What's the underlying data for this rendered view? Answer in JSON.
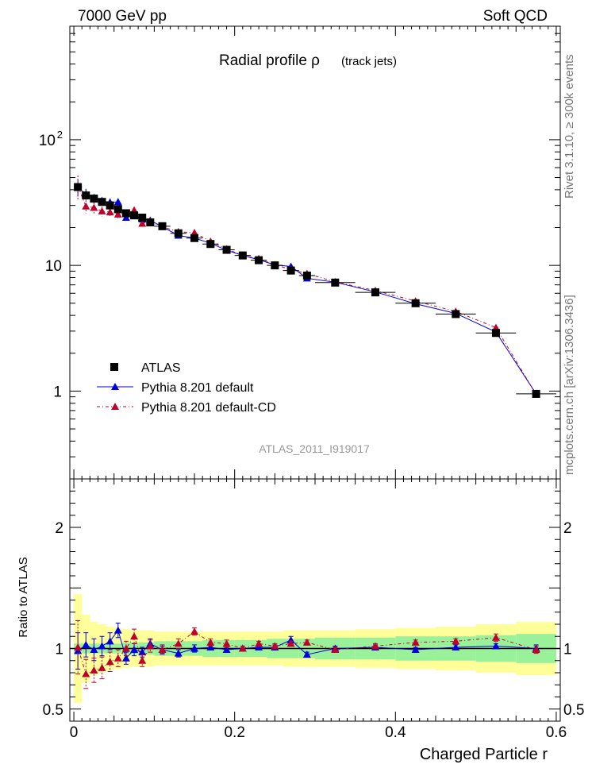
{
  "header": {
    "left": "7000 GeV pp",
    "right": "Soft QCD"
  },
  "side_text": {
    "rivet": "Rivet 3.1.10, ≥ 300k events",
    "mcplots": "mcplots.cern.ch [arXiv:1306.3436]"
  },
  "chart_data": {
    "type": "scatter",
    "title": "Radial profile ρ",
    "title_suffix": "(track jets)",
    "analysis_label": "ATLAS_2011_I919017",
    "xlabel": "Charged Particle r",
    "ratio_ylabel": "Ratio to ATLAS",
    "xlim": [
      -0.005,
      0.605
    ],
    "ylim": [
      0.2,
      800
    ],
    "yscale": "log",
    "ratio_ylim": [
      0.4,
      2.4
    ],
    "x_ticks": [
      {
        "v": 0,
        "label": "0"
      },
      {
        "v": 0.2,
        "label": "0.2"
      },
      {
        "v": 0.4,
        "label": "0.4"
      },
      {
        "v": 0.6,
        "label": "0.6"
      }
    ],
    "y_ticks": [
      {
        "v": 1,
        "label": "1"
      },
      {
        "v": 10,
        "label": "10"
      },
      {
        "v": 100,
        "label": "10",
        "sup": "2"
      }
    ],
    "ratio_ticks": [
      {
        "v": 0.5,
        "label": "0.5"
      },
      {
        "v": 1,
        "label": "1"
      },
      {
        "v": 2,
        "label": "2"
      }
    ],
    "legend_position": "center-left",
    "x": [
      0.005,
      0.015,
      0.025,
      0.035,
      0.045,
      0.055,
      0.065,
      0.075,
      0.085,
      0.095,
      0.11,
      0.13,
      0.15,
      0.17,
      0.19,
      0.21,
      0.23,
      0.25,
      0.27,
      0.29,
      0.325,
      0.375,
      0.425,
      0.475,
      0.525,
      0.575
    ],
    "xerr": [
      0.005,
      0.005,
      0.005,
      0.005,
      0.005,
      0.005,
      0.005,
      0.005,
      0.005,
      0.005,
      0.01,
      0.01,
      0.01,
      0.01,
      0.01,
      0.01,
      0.01,
      0.01,
      0.01,
      0.01,
      0.025,
      0.025,
      0.025,
      0.025,
      0.025,
      0.025
    ],
    "series": [
      {
        "name": "ATLAS",
        "color": "#000000",
        "marker": "square",
        "values": [
          42,
          36,
          34,
          32,
          30,
          28,
          26,
          25,
          24,
          22,
          20.5,
          18,
          16.5,
          14.8,
          13.3,
          12.0,
          11.0,
          10.0,
          9.1,
          8.3,
          7.3,
          6.1,
          5.0,
          4.1,
          2.9,
          0.95
        ],
        "band_stat": [
          0.04,
          0.04,
          0.04,
          0.04,
          0.04,
          0.04,
          0.05,
          0.05,
          0.05,
          0.05,
          0.06,
          0.06,
          0.06,
          0.07,
          0.07,
          0.07,
          0.07,
          0.08,
          0.08,
          0.08,
          0.09,
          0.09,
          0.1,
          0.1,
          0.11,
          0.12
        ],
        "band_total": [
          0.45,
          0.28,
          0.22,
          0.2,
          0.18,
          0.17,
          0.16,
          0.15,
          0.15,
          0.15,
          0.14,
          0.14,
          0.14,
          0.14,
          0.14,
          0.14,
          0.14,
          0.14,
          0.15,
          0.15,
          0.15,
          0.16,
          0.17,
          0.18,
          0.2,
          0.22
        ]
      },
      {
        "name": "Pythia 8.201 default",
        "color": "#0000dd",
        "marker": "triangle",
        "line": "solid",
        "values": [
          41.5,
          37,
          34,
          32.5,
          31.8,
          32.0,
          24.0,
          24.8,
          23.3,
          22.8,
          20.3,
          17.3,
          16.5,
          15.0,
          13.2,
          12.0,
          11.1,
          10.1,
          9.8,
          7.9,
          7.35,
          6.15,
          4.95,
          4.15,
          2.95,
          0.95
        ],
        "ratio": [
          0.98,
          1.03,
          0.99,
          1.02,
          1.06,
          1.15,
          0.92,
          0.99,
          0.97,
          1.04,
          0.99,
          0.96,
          1.0,
          1.01,
          0.99,
          1.0,
          1.01,
          1.01,
          1.07,
          0.95,
          1.0,
          1.01,
          0.99,
          1.01,
          1.02,
          1.0
        ],
        "ratio_err": [
          0.15,
          0.1,
          0.09,
          0.08,
          0.07,
          0.06,
          0.05,
          0.05,
          0.04,
          0.04,
          0.03,
          0.03,
          0.03,
          0.02,
          0.02,
          0.02,
          0.02,
          0.02,
          0.03,
          0.02,
          0.02,
          0.02,
          0.02,
          0.02,
          0.02,
          0.03
        ]
      },
      {
        "name": "Pythia 8.201 default-CD",
        "color": "#c0002a",
        "marker": "triangle",
        "line": "dashdot",
        "values": [
          42.5,
          29.5,
          28.8,
          27,
          26.5,
          25.5,
          26,
          27.5,
          21.5,
          22.3,
          20.3,
          18.5,
          18.2,
          15.5,
          13.5,
          12.0,
          11.3,
          10.1,
          9.3,
          8.6,
          7.4,
          6.3,
          5.2,
          4.3,
          3.2,
          0.94
        ],
        "ratio": [
          1.01,
          0.79,
          0.82,
          0.84,
          0.89,
          0.92,
          1.0,
          1.1,
          0.9,
          1.02,
          0.99,
          1.04,
          1.14,
          1.05,
          1.04,
          1.0,
          1.04,
          1.02,
          1.04,
          1.05,
          0.99,
          1.02,
          1.05,
          1.06,
          1.09,
          0.99
        ],
        "ratio_err": [
          0.22,
          0.12,
          0.1,
          0.09,
          0.08,
          0.07,
          0.06,
          0.06,
          0.05,
          0.05,
          0.04,
          0.04,
          0.03,
          0.03,
          0.03,
          0.02,
          0.02,
          0.02,
          0.02,
          0.02,
          0.02,
          0.02,
          0.02,
          0.02,
          0.03,
          0.03
        ]
      }
    ]
  }
}
